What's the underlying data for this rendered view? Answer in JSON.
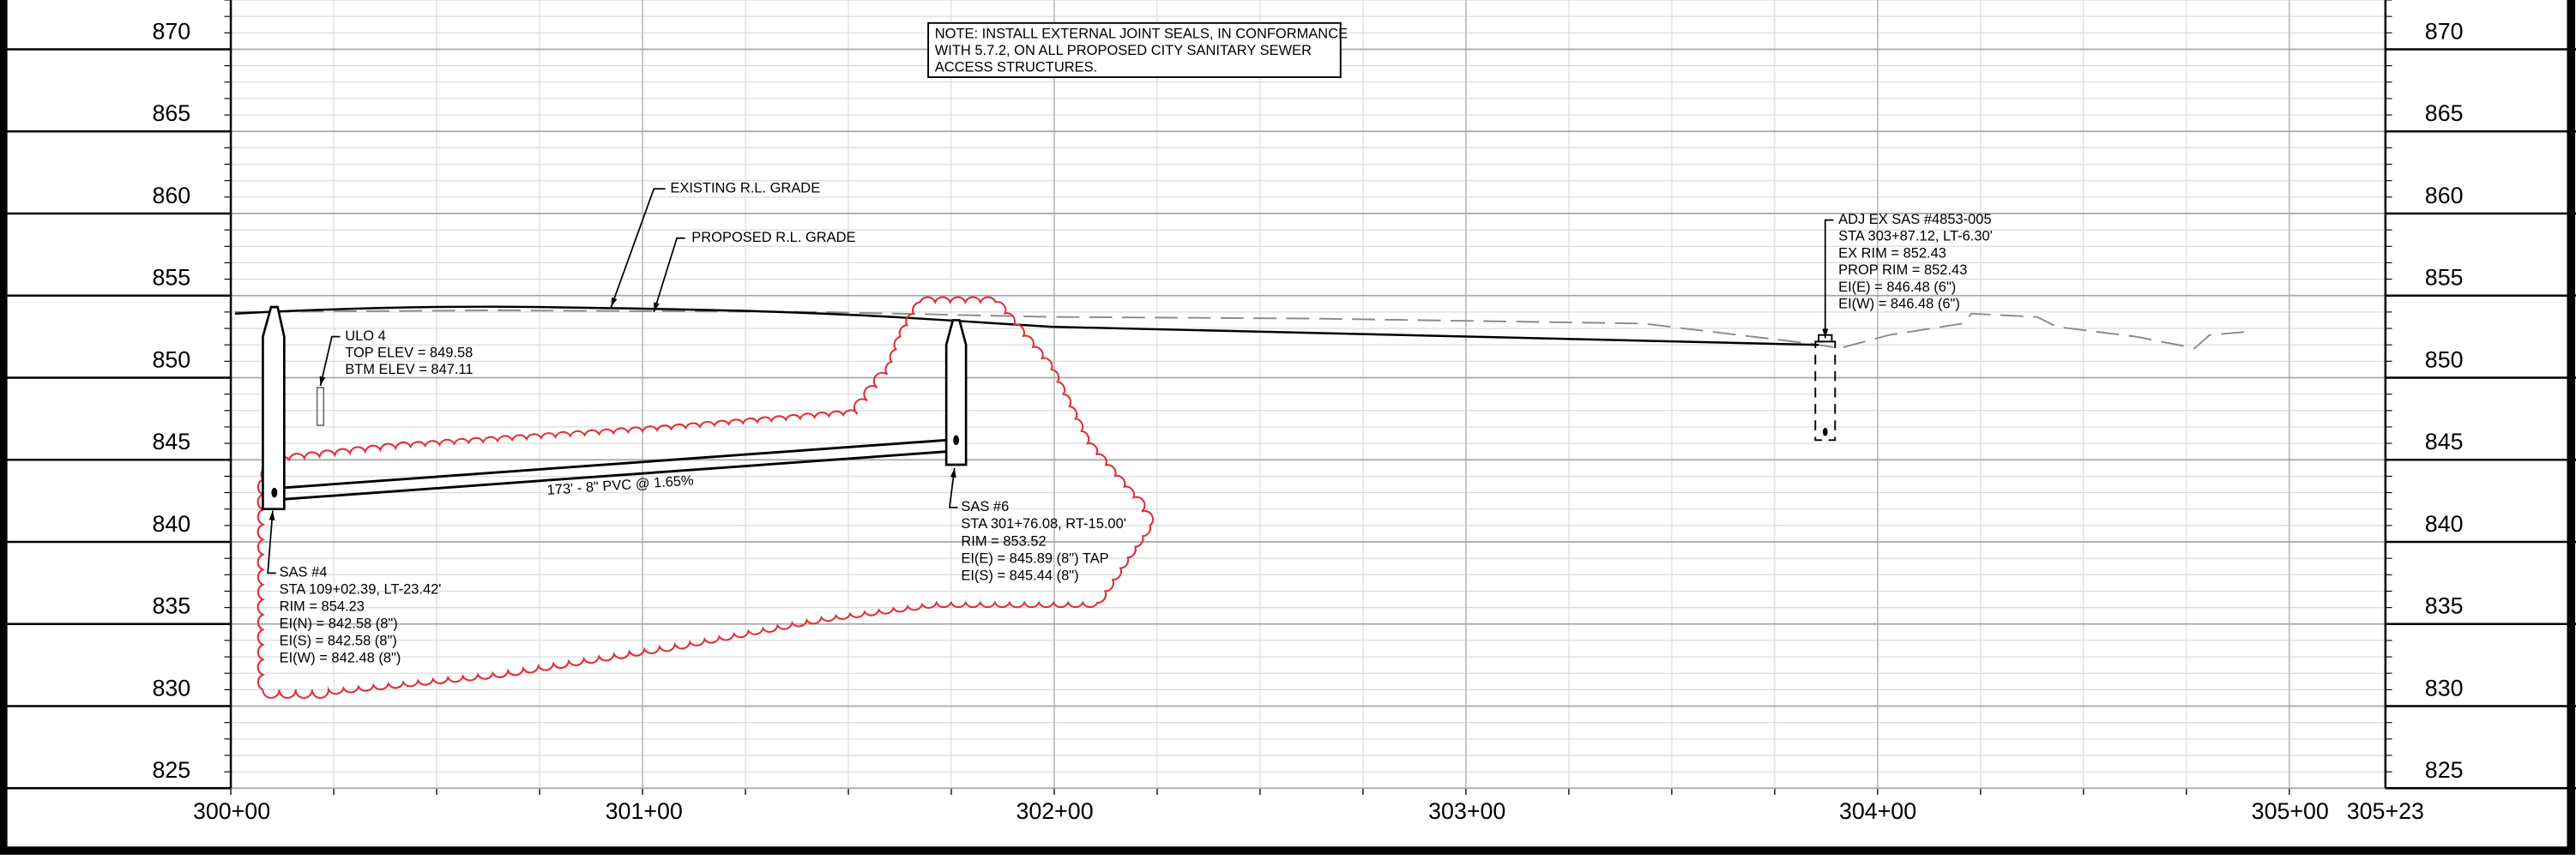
{
  "profile": {
    "elevations": [
      870,
      865,
      860,
      855,
      850,
      845,
      840,
      835,
      830,
      825
    ],
    "stations": [
      "300+00",
      "301+00",
      "302+00",
      "303+00",
      "304+00",
      "305+00",
      "305+23"
    ],
    "note": [
      "NOTE: INSTALL EXTERNAL JOINT SEALS, IN CONFORMANCE",
      "WITH 5.7.2, ON ALL PROPOSED CITY SANITARY SEWER",
      "ACCESS STRUCTURES."
    ],
    "existing_grade_label": "EXISTING R.L. GRADE",
    "proposed_grade_label": "PROPOSED R.L. GRADE",
    "pipe_label": "173' - 8\" PVC @ 1.65%",
    "ulo": [
      "ULO 4",
      "TOP ELEV = 849.58",
      "BTM ELEV = 847.11"
    ],
    "sas4": [
      "SAS #4",
      "STA 109+02.39, LT-23.42'",
      "RIM = 854.23",
      "EI(N) = 842.58 (8\")",
      "EI(S) = 842.58 (8\")",
      "EI(W) = 842.48 (8\")"
    ],
    "sas6": [
      "SAS #6",
      "STA 301+76.08, RT-15.00'",
      "RIM = 853.52",
      "EI(E) = 845.89 (8\") TAP",
      "EI(S) = 845.44 (8\")"
    ],
    "adj": [
      "ADJ EX SAS #4853-005",
      "STA 303+87.12, LT-6.30'",
      "EX RIM = 852.43",
      "PROP RIM = 852.43",
      "EI(E) = 846.48 (6\")",
      "EI(W) = 846.48 (6\")"
    ]
  }
}
